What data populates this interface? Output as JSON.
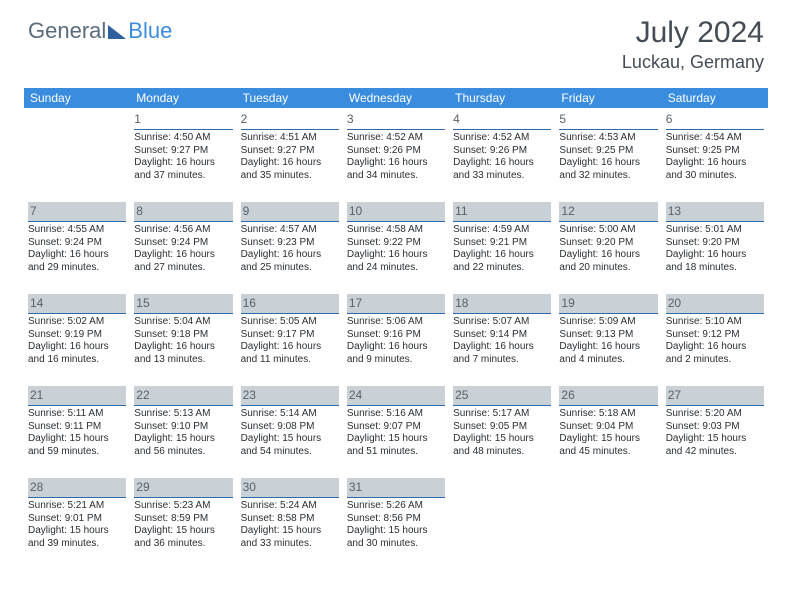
{
  "logo": {
    "text1": "General",
    "text2": "Blue"
  },
  "title": {
    "month": "July 2024",
    "location": "Luckau, Germany"
  },
  "columns": [
    "Sunday",
    "Monday",
    "Tuesday",
    "Wednesday",
    "Thursday",
    "Friday",
    "Saturday"
  ],
  "colors": {
    "header_bg": "#3a8dde",
    "header_fg": "#ffffff",
    "rule": "#2e6aa8",
    "shade": "#c9d1d7",
    "text": "#2a2f33",
    "daynum": "#5a6268",
    "title": "#444c55"
  },
  "weeks": [
    {
      "shaded": false,
      "days": [
        {
          "n": "",
          "sr": "",
          "ss": "",
          "dl1": "",
          "dl2": ""
        },
        {
          "n": "1",
          "sr": "Sunrise: 4:50 AM",
          "ss": "Sunset: 9:27 PM",
          "dl1": "Daylight: 16 hours",
          "dl2": "and 37 minutes."
        },
        {
          "n": "2",
          "sr": "Sunrise: 4:51 AM",
          "ss": "Sunset: 9:27 PM",
          "dl1": "Daylight: 16 hours",
          "dl2": "and 35 minutes."
        },
        {
          "n": "3",
          "sr": "Sunrise: 4:52 AM",
          "ss": "Sunset: 9:26 PM",
          "dl1": "Daylight: 16 hours",
          "dl2": "and 34 minutes."
        },
        {
          "n": "4",
          "sr": "Sunrise: 4:52 AM",
          "ss": "Sunset: 9:26 PM",
          "dl1": "Daylight: 16 hours",
          "dl2": "and 33 minutes."
        },
        {
          "n": "5",
          "sr": "Sunrise: 4:53 AM",
          "ss": "Sunset: 9:25 PM",
          "dl1": "Daylight: 16 hours",
          "dl2": "and 32 minutes."
        },
        {
          "n": "6",
          "sr": "Sunrise: 4:54 AM",
          "ss": "Sunset: 9:25 PM",
          "dl1": "Daylight: 16 hours",
          "dl2": "and 30 minutes."
        }
      ]
    },
    {
      "shaded": true,
      "days": [
        {
          "n": "7",
          "sr": "Sunrise: 4:55 AM",
          "ss": "Sunset: 9:24 PM",
          "dl1": "Daylight: 16 hours",
          "dl2": "and 29 minutes."
        },
        {
          "n": "8",
          "sr": "Sunrise: 4:56 AM",
          "ss": "Sunset: 9:24 PM",
          "dl1": "Daylight: 16 hours",
          "dl2": "and 27 minutes."
        },
        {
          "n": "9",
          "sr": "Sunrise: 4:57 AM",
          "ss": "Sunset: 9:23 PM",
          "dl1": "Daylight: 16 hours",
          "dl2": "and 25 minutes."
        },
        {
          "n": "10",
          "sr": "Sunrise: 4:58 AM",
          "ss": "Sunset: 9:22 PM",
          "dl1": "Daylight: 16 hours",
          "dl2": "and 24 minutes."
        },
        {
          "n": "11",
          "sr": "Sunrise: 4:59 AM",
          "ss": "Sunset: 9:21 PM",
          "dl1": "Daylight: 16 hours",
          "dl2": "and 22 minutes."
        },
        {
          "n": "12",
          "sr": "Sunrise: 5:00 AM",
          "ss": "Sunset: 9:20 PM",
          "dl1": "Daylight: 16 hours",
          "dl2": "and 20 minutes."
        },
        {
          "n": "13",
          "sr": "Sunrise: 5:01 AM",
          "ss": "Sunset: 9:20 PM",
          "dl1": "Daylight: 16 hours",
          "dl2": "and 18 minutes."
        }
      ]
    },
    {
      "shaded": true,
      "days": [
        {
          "n": "14",
          "sr": "Sunrise: 5:02 AM",
          "ss": "Sunset: 9:19 PM",
          "dl1": "Daylight: 16 hours",
          "dl2": "and 16 minutes."
        },
        {
          "n": "15",
          "sr": "Sunrise: 5:04 AM",
          "ss": "Sunset: 9:18 PM",
          "dl1": "Daylight: 16 hours",
          "dl2": "and 13 minutes."
        },
        {
          "n": "16",
          "sr": "Sunrise: 5:05 AM",
          "ss": "Sunset: 9:17 PM",
          "dl1": "Daylight: 16 hours",
          "dl2": "and 11 minutes."
        },
        {
          "n": "17",
          "sr": "Sunrise: 5:06 AM",
          "ss": "Sunset: 9:16 PM",
          "dl1": "Daylight: 16 hours",
          "dl2": "and 9 minutes."
        },
        {
          "n": "18",
          "sr": "Sunrise: 5:07 AM",
          "ss": "Sunset: 9:14 PM",
          "dl1": "Daylight: 16 hours",
          "dl2": "and 7 minutes."
        },
        {
          "n": "19",
          "sr": "Sunrise: 5:09 AM",
          "ss": "Sunset: 9:13 PM",
          "dl1": "Daylight: 16 hours",
          "dl2": "and 4 minutes."
        },
        {
          "n": "20",
          "sr": "Sunrise: 5:10 AM",
          "ss": "Sunset: 9:12 PM",
          "dl1": "Daylight: 16 hours",
          "dl2": "and 2 minutes."
        }
      ]
    },
    {
      "shaded": true,
      "days": [
        {
          "n": "21",
          "sr": "Sunrise: 5:11 AM",
          "ss": "Sunset: 9:11 PM",
          "dl1": "Daylight: 15 hours",
          "dl2": "and 59 minutes."
        },
        {
          "n": "22",
          "sr": "Sunrise: 5:13 AM",
          "ss": "Sunset: 9:10 PM",
          "dl1": "Daylight: 15 hours",
          "dl2": "and 56 minutes."
        },
        {
          "n": "23",
          "sr": "Sunrise: 5:14 AM",
          "ss": "Sunset: 9:08 PM",
          "dl1": "Daylight: 15 hours",
          "dl2": "and 54 minutes."
        },
        {
          "n": "24",
          "sr": "Sunrise: 5:16 AM",
          "ss": "Sunset: 9:07 PM",
          "dl1": "Daylight: 15 hours",
          "dl2": "and 51 minutes."
        },
        {
          "n": "25",
          "sr": "Sunrise: 5:17 AM",
          "ss": "Sunset: 9:05 PM",
          "dl1": "Daylight: 15 hours",
          "dl2": "and 48 minutes."
        },
        {
          "n": "26",
          "sr": "Sunrise: 5:18 AM",
          "ss": "Sunset: 9:04 PM",
          "dl1": "Daylight: 15 hours",
          "dl2": "and 45 minutes."
        },
        {
          "n": "27",
          "sr": "Sunrise: 5:20 AM",
          "ss": "Sunset: 9:03 PM",
          "dl1": "Daylight: 15 hours",
          "dl2": "and 42 minutes."
        }
      ]
    },
    {
      "shaded": true,
      "days": [
        {
          "n": "28",
          "sr": "Sunrise: 5:21 AM",
          "ss": "Sunset: 9:01 PM",
          "dl1": "Daylight: 15 hours",
          "dl2": "and 39 minutes."
        },
        {
          "n": "29",
          "sr": "Sunrise: 5:23 AM",
          "ss": "Sunset: 8:59 PM",
          "dl1": "Daylight: 15 hours",
          "dl2": "and 36 minutes."
        },
        {
          "n": "30",
          "sr": "Sunrise: 5:24 AM",
          "ss": "Sunset: 8:58 PM",
          "dl1": "Daylight: 15 hours",
          "dl2": "and 33 minutes."
        },
        {
          "n": "31",
          "sr": "Sunrise: 5:26 AM",
          "ss": "Sunset: 8:56 PM",
          "dl1": "Daylight: 15 hours",
          "dl2": "and 30 minutes."
        },
        {
          "n": "",
          "sr": "",
          "ss": "",
          "dl1": "",
          "dl2": ""
        },
        {
          "n": "",
          "sr": "",
          "ss": "",
          "dl1": "",
          "dl2": ""
        },
        {
          "n": "",
          "sr": "",
          "ss": "",
          "dl1": "",
          "dl2": ""
        }
      ]
    }
  ]
}
